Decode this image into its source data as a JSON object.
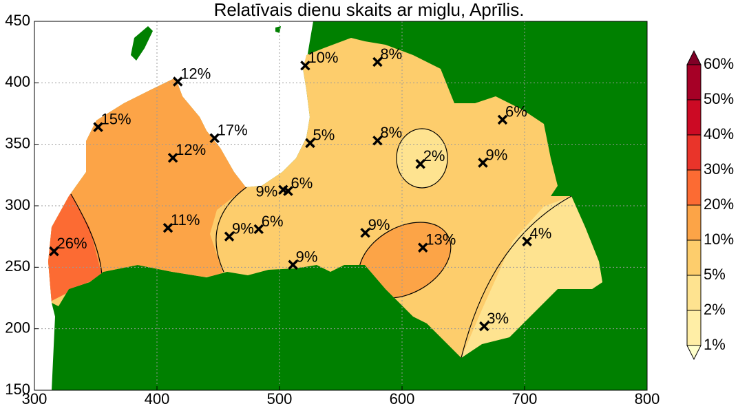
{
  "chart_data": {
    "type": "scatter",
    "title": "Relatīvais dienu skaits ar miglu, Aprīlis.",
    "xlim": [
      300,
      800
    ],
    "xticks": [
      300,
      400,
      500,
      600,
      700,
      800
    ],
    "ylim": [
      150,
      450
    ],
    "yticks": [
      150,
      200,
      250,
      300,
      350,
      400,
      450
    ],
    "grid": true,
    "series": [
      {
        "color": "#000000",
        "x": [
          316,
          352,
          417,
          447,
          413,
          409,
          459,
          483,
          503,
          507,
          511,
          521,
          525,
          580,
          580,
          570,
          615,
          617,
          666,
          682,
          702,
          667
        ],
        "y": [
          263,
          364,
          401,
          355,
          339,
          282,
          275,
          281,
          313,
          312,
          252,
          414,
          351,
          417,
          353,
          278,
          334,
          266,
          335,
          370,
          271,
          202
        ],
        "values": [
          26,
          15,
          12,
          17,
          12,
          11,
          9,
          6,
          9,
          6,
          9,
          10,
          5,
          8,
          8,
          9,
          2,
          13,
          9,
          6,
          4,
          3
        ],
        "value_labels": [
          "26%",
          "15%",
          "12%",
          "17%",
          "12%",
          "11%",
          "9%",
          "6%",
          "9%",
          "6%",
          "9%",
          "10%",
          "5%",
          "8%",
          "8%",
          "9%",
          "2%",
          "13%",
          "9%",
          "6%",
          "4%",
          "3%"
        ]
      }
    ],
    "colorbar": {
      "ticks": [
        {
          "value": 1,
          "label": "1%"
        },
        {
          "value": 2,
          "label": "2%"
        },
        {
          "value": 5,
          "label": "5%"
        },
        {
          "value": 10,
          "label": "10%"
        },
        {
          "value": 20,
          "label": "20%"
        },
        {
          "value": 30,
          "label": "30%"
        },
        {
          "value": 40,
          "label": "40%"
        },
        {
          "value": 50,
          "label": "50%"
        },
        {
          "value": 60,
          "label": "60%"
        }
      ],
      "colors": [
        "#ffeea6",
        "#fee390",
        "#fdcd6c",
        "#fca447",
        "#fc6b33",
        "#e9342a",
        "#cc0a24",
        "#a60026"
      ],
      "under_color": "#ffffcc",
      "over_color": "#800026"
    },
    "land_color": "#008000"
  }
}
